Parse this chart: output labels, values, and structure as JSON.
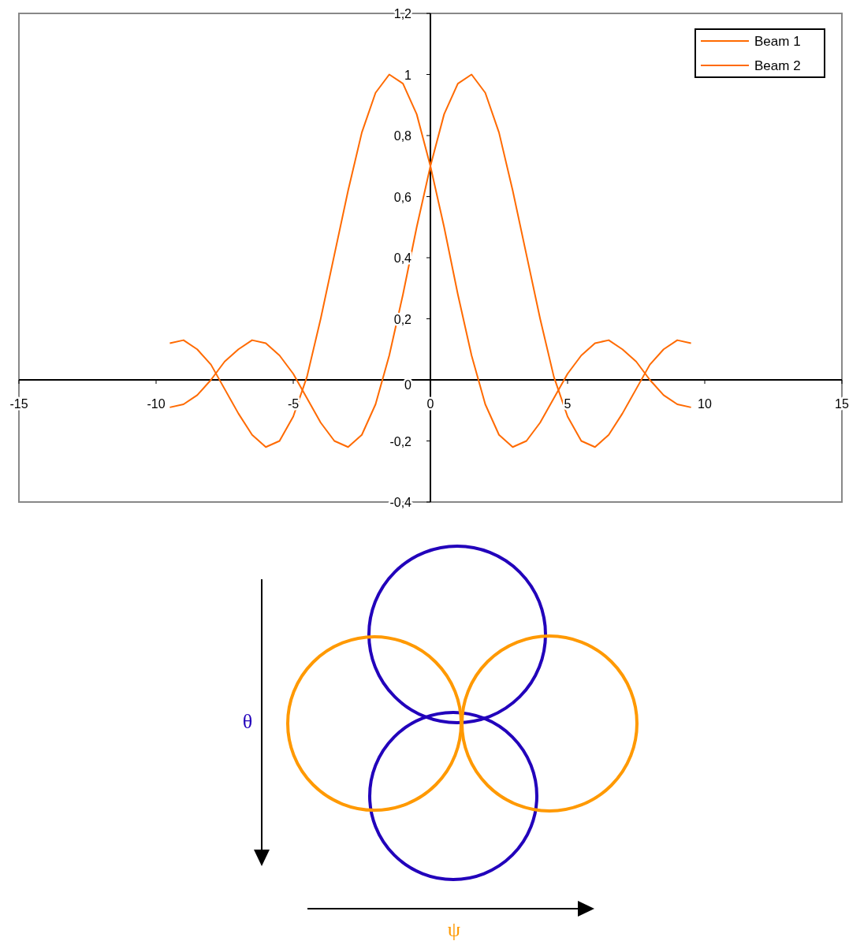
{
  "chart_data": {
    "type": "line",
    "x": [
      -9.5,
      -9,
      -8.5,
      -8,
      -7.5,
      -7,
      -6.5,
      -6,
      -5.5,
      -5,
      -4.5,
      -4,
      -3.5,
      -3,
      -2.5,
      -2,
      -1.5,
      -1,
      -0.5,
      0,
      0.5,
      1,
      1.5,
      2,
      2.5,
      3,
      3.5,
      4,
      4.5,
      5,
      5.5,
      6,
      6.5,
      7,
      7.5,
      8,
      8.5,
      9,
      9.5
    ],
    "series": [
      {
        "name": "Beam 1",
        "color": "#ff6a00",
        "values": [
          0.12,
          0.13,
          0.1,
          0.05,
          -0.03,
          -0.11,
          -0.18,
          -0.22,
          -0.2,
          -0.12,
          0.01,
          0.2,
          0.41,
          0.62,
          0.81,
          0.94,
          1.0,
          0.97,
          0.87,
          0.7,
          0.5,
          0.28,
          0.08,
          -0.08,
          -0.18,
          -0.22,
          -0.2,
          -0.14,
          -0.06,
          0.02,
          0.08,
          0.12,
          0.13,
          0.1,
          0.06,
          0.0,
          -0.05,
          -0.08,
          -0.09
        ]
      },
      {
        "name": "Beam 2",
        "color": "#ff6a00",
        "values": [
          -0.09,
          -0.08,
          -0.05,
          0.0,
          0.06,
          0.1,
          0.13,
          0.12,
          0.08,
          0.02,
          -0.06,
          -0.14,
          -0.2,
          -0.22,
          -0.18,
          -0.08,
          0.08,
          0.28,
          0.5,
          0.7,
          0.87,
          0.97,
          1.0,
          0.94,
          0.81,
          0.62,
          0.41,
          0.2,
          0.01,
          -0.12,
          -0.2,
          -0.22,
          -0.18,
          -0.11,
          -0.03,
          0.05,
          0.1,
          0.13,
          0.12
        ]
      }
    ],
    "xlim": [
      -15,
      15
    ],
    "xticks": [
      -15,
      -10,
      -5,
      0,
      5,
      10,
      15
    ],
    "ylim": [
      -0.4,
      1.2
    ],
    "yticks": [
      {
        "value": -0.4,
        "label": "-0,4"
      },
      {
        "value": -0.2,
        "label": "-0,2"
      },
      0,
      {
        "value": 0.2,
        "label": "0,2"
      },
      {
        "value": 0.4,
        "label": "0,4"
      },
      {
        "value": 0.6,
        "label": "0,6"
      },
      {
        "value": 0.8,
        "label": "0,8"
      },
      1,
      {
        "value": 1.2,
        "label": "1,2"
      }
    ],
    "grid": false,
    "legend": "top right",
    "marker": "none",
    "line_style": "solid",
    "annotations": [
      "θ",
      "ψ"
    ]
  }
}
